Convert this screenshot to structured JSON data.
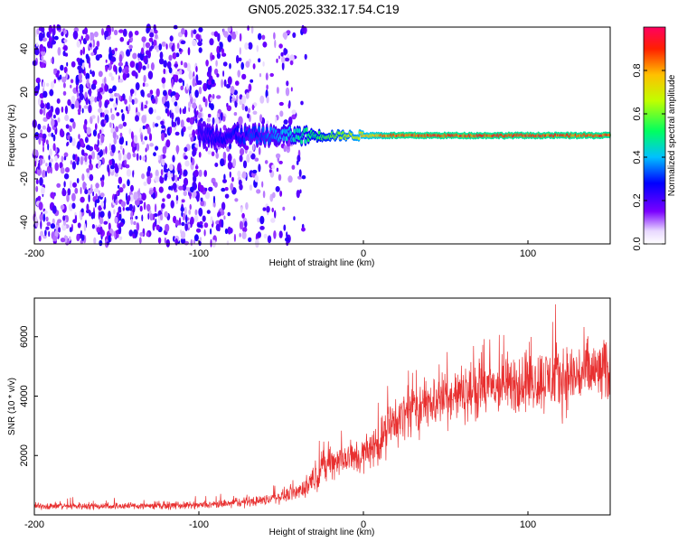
{
  "title": "GN05.2025.332.17.54.C19",
  "chart_data": [
    {
      "type": "heatmap",
      "name": "spectrogram",
      "xlabel": "Height of straight line (km)",
      "ylabel": "Frequency (Hz)",
      "xlim": [
        -200,
        150
      ],
      "ylim": [
        -50,
        50
      ],
      "xticks": [
        -200,
        -100,
        0,
        100
      ],
      "xtick_labels": [
        "-200",
        "-100",
        "0",
        "100"
      ],
      "yticks": [
        -40,
        -20,
        0,
        20,
        40
      ],
      "ytick_labels": [
        "-40",
        "-20",
        "0",
        "20",
        "40"
      ],
      "ridge": {
        "x_start": -100,
        "x_end": 150,
        "center_freq_hz": 0,
        "description_levels": [
          {
            "x": -100,
            "amplitude": 0.25,
            "width_hz": 8
          },
          {
            "x": -60,
            "amplitude": 0.35,
            "width_hz": 6
          },
          {
            "x": -30,
            "amplitude": 0.55,
            "width_hz": 4
          },
          {
            "x": -10,
            "amplitude": 0.7,
            "width_hz": 3
          },
          {
            "x": 0,
            "amplitude": 0.8,
            "width_hz": 3
          },
          {
            "x": 20,
            "amplitude": 0.95,
            "width_hz": 3
          },
          {
            "x": 150,
            "amplitude": 0.95,
            "width_hz": 3
          }
        ]
      },
      "noise_region": {
        "x_start": -200,
        "x_end": -35,
        "amplitude_range": [
          0.05,
          0.25
        ]
      },
      "colorbar": {
        "label": "Normalized spectral amplitude",
        "range": [
          0,
          1
        ],
        "ticks": [
          0.0,
          0.2,
          0.4,
          0.6,
          0.8
        ],
        "tick_labels": [
          "0.0",
          "0.2",
          "0.4",
          "0.6",
          "0.8"
        ]
      }
    },
    {
      "type": "line",
      "name": "snr",
      "xlabel": "Height of straight line (km)",
      "ylabel": "SNR (10 * v/v)",
      "xlim": [
        -200,
        150
      ],
      "ylim": [
        0,
        7300
      ],
      "xticks": [
        -200,
        -100,
        0,
        100
      ],
      "xtick_labels": [
        "-200",
        "-100",
        "0",
        "100"
      ],
      "yticks": [
        2000,
        4000,
        6000
      ],
      "ytick_labels": [
        "2000",
        "4000",
        "6000"
      ],
      "series": [
        {
          "name": "SNR",
          "color": "#e83030",
          "trend_x": [
            -200,
            -150,
            -100,
            -80,
            -60,
            -45,
            -35,
            -30,
            -20,
            -10,
            0,
            10,
            20,
            40,
            60,
            80,
            100,
            120,
            140,
            150
          ],
          "trend_y": [
            300,
            300,
            320,
            380,
            500,
            700,
            900,
            1300,
            1800,
            1900,
            2000,
            2500,
            3200,
            3800,
            4100,
            4300,
            4500,
            4600,
            4800,
            4800
          ],
          "spread_y": [
            150,
            150,
            150,
            170,
            220,
            300,
            450,
            600,
            700,
            750,
            800,
            900,
            1000,
            1100,
            1150,
            1200,
            1300,
            1400,
            1400,
            1400
          ]
        }
      ]
    }
  ],
  "colors": {
    "line": "#e83030",
    "frame": "#000000",
    "background": "#ffffff"
  }
}
